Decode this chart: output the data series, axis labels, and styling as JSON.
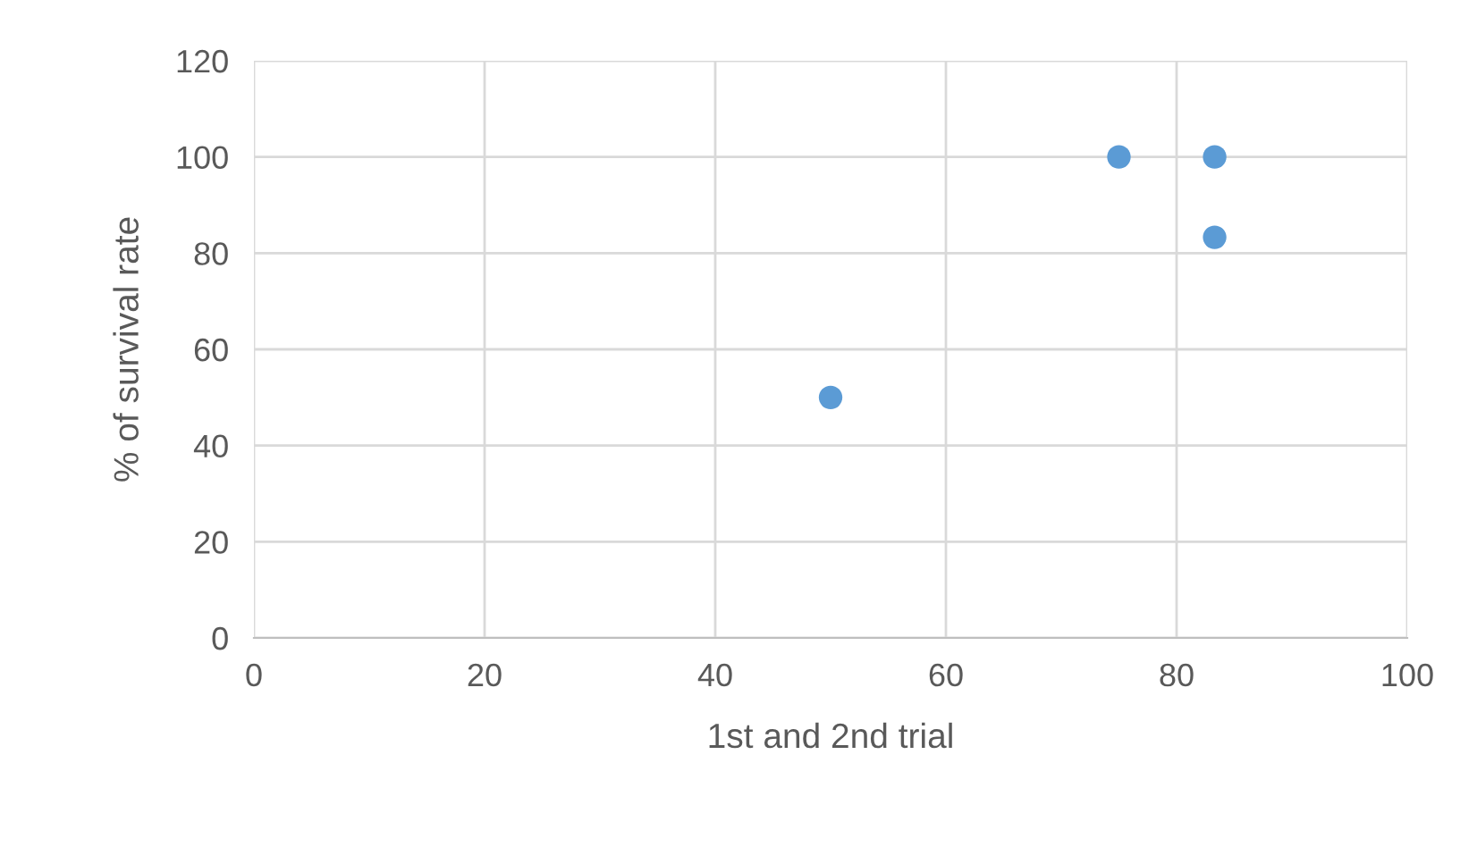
{
  "chart_data": {
    "type": "scatter",
    "xlabel": "1st and 2nd trial",
    "ylabel": "% of survival rate",
    "x": [
      50,
      75,
      83.3,
      83.3
    ],
    "series": [
      {
        "color": "#5b9bd5",
        "values": [
          50,
          100,
          100,
          83.3
        ]
      }
    ],
    "xlim": [
      0,
      100
    ],
    "xticks": [
      0,
      20,
      40,
      60,
      80,
      100
    ],
    "ylim": [
      0,
      120
    ],
    "yticks": [
      0,
      20,
      40,
      60,
      80,
      100,
      120
    ],
    "grid": true,
    "marker": "circle",
    "legend": false
  }
}
